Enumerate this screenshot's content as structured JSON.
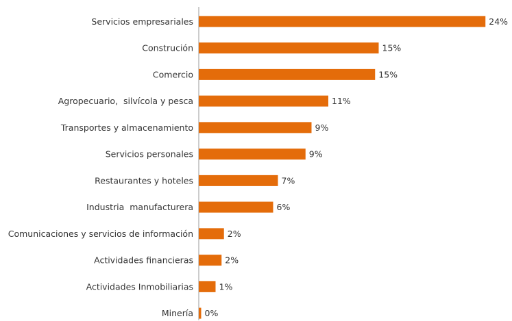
{
  "chart_data": {
    "type": "barh",
    "categories": [
      "Servicios empresariales",
      "Construción",
      "Comercio",
      "Agropecuario,  silvícola y pesca",
      "Transportes y almacenamiento",
      "Servicios personales",
      "Restaurantes y hoteles",
      "Industria  manufacturera",
      "Comunicaciones y servicios de información",
      "Actividades financieras",
      "Actividades Inmobiliarias",
      "Minería"
    ],
    "values": [
      23.9,
      15.0,
      14.7,
      10.8,
      9.4,
      8.9,
      6.6,
      6.2,
      2.1,
      1.9,
      1.4,
      0.2
    ],
    "value_labels": [
      "24%",
      "15%",
      "15%",
      "11%",
      "9%",
      "9%",
      "7%",
      "6%",
      "2%",
      "2%",
      "1%",
      "0%"
    ],
    "color": "#e46c0a",
    "xlim": [
      0,
      25
    ]
  }
}
